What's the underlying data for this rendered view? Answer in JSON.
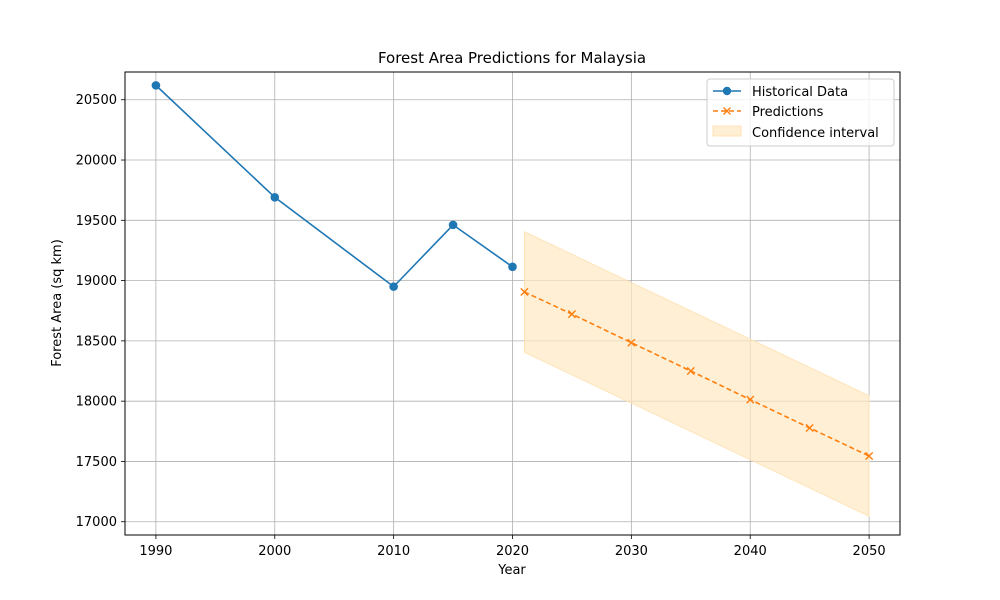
{
  "chart_data": {
    "type": "line",
    "title": "Forest Area Predictions for Malaysia",
    "xlabel": "Year",
    "ylabel": "Forest Area (sq km)",
    "xlim": [
      1987.4,
      2052.6
    ],
    "ylim": [
      16890,
      20730
    ],
    "xticks": [
      1990,
      2000,
      2010,
      2020,
      2030,
      2040,
      2050
    ],
    "yticks": [
      17000,
      17500,
      18000,
      18500,
      19000,
      19500,
      20000,
      20500
    ],
    "grid": true,
    "legend_position": "top-right",
    "series": [
      {
        "name": "Historical Data",
        "style": "solid-circle",
        "color": "#1f77b4",
        "x": [
          1990,
          2000,
          2010,
          2015,
          2020
        ],
        "y": [
          20619,
          19691,
          18950,
          19462,
          19114
        ]
      },
      {
        "name": "Predictions",
        "style": "dashed-x",
        "color": "#ff7f0e",
        "x": [
          2021,
          2025,
          2030,
          2035,
          2040,
          2045,
          2050
        ],
        "y": [
          18906,
          18722,
          18485,
          18250,
          18013,
          17778,
          17545
        ]
      }
    ],
    "confidence_interval": {
      "name": "Confidence interval",
      "color": "#ffe8c2",
      "x": [
        2021,
        2050
      ],
      "upper": [
        19406,
        18045
      ],
      "lower": [
        18406,
        17045
      ]
    }
  }
}
